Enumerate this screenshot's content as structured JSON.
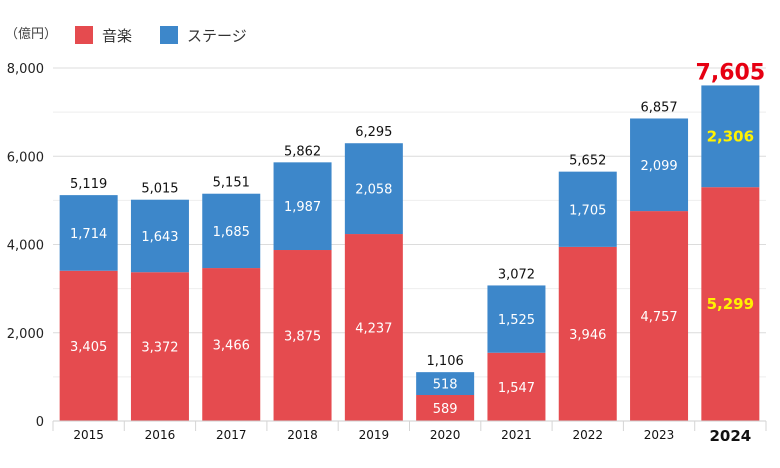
{
  "chart_data": {
    "type": "bar",
    "stacked": true,
    "title": "",
    "unit_label": "（億円）",
    "xlabel": "",
    "ylabel": "",
    "ylim": [
      0,
      8000
    ],
    "yticks": [
      0,
      2000,
      4000,
      6000,
      8000
    ],
    "ytick_labels": [
      "0",
      "2,000",
      "4,000",
      "6,000",
      "8,000"
    ],
    "grid": true,
    "legend_position": "top-left",
    "categories": [
      "2015",
      "2016",
      "2017",
      "2018",
      "2019",
      "2020",
      "2021",
      "2022",
      "2023",
      "2024"
    ],
    "highlight_category": "2024",
    "series": [
      {
        "name": "音楽",
        "color": "#e54b4f",
        "values": [
          3405,
          3372,
          3466,
          3875,
          4237,
          589,
          1547,
          3946,
          4757,
          5299
        ],
        "labels": [
          "3,405",
          "3,372",
          "3,466",
          "3,875",
          "4,237",
          "589",
          "1,547",
          "3,946",
          "4,757",
          "5,299"
        ]
      },
      {
        "name": "ステージ",
        "color": "#3d87ca",
        "values": [
          1714,
          1643,
          1685,
          1987,
          2058,
          518,
          1525,
          1705,
          2099,
          2306
        ],
        "labels": [
          "1,714",
          "1,643",
          "1,685",
          "1,987",
          "2,058",
          "518",
          "1,525",
          "1,705",
          "2,099",
          "2,306"
        ]
      }
    ],
    "totals": [
      5119,
      5015,
      5151,
      5862,
      6295,
      1106,
      3072,
      5652,
      6857,
      7605
    ],
    "total_labels": [
      "5,119",
      "5,015",
      "5,151",
      "5,862",
      "6,295",
      "1,106",
      "3,072",
      "5,652",
      "6,857",
      "7,605"
    ],
    "colors": {
      "highlight_total": "#e60012",
      "highlight_segment_label": "#fff200",
      "segment_label": "#ffffff",
      "total_label": "#111111"
    }
  }
}
